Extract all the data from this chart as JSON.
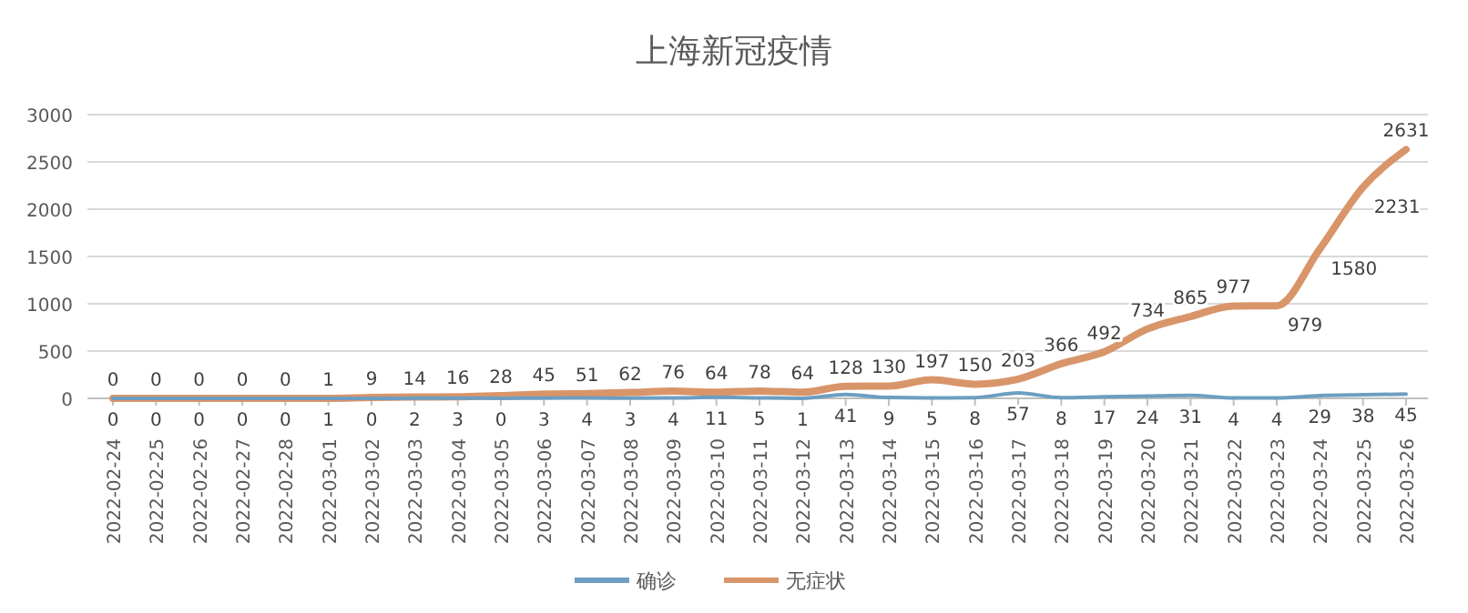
{
  "chart_data": {
    "type": "line",
    "title": "上海新冠疫情",
    "categories": [
      "2022-02-24",
      "2022-02-25",
      "2022-02-26",
      "2022-02-27",
      "2022-02-28",
      "2022-03-01",
      "2022-03-02",
      "2022-03-03",
      "2022-03-04",
      "2022-03-05",
      "2022-03-06",
      "2022-03-07",
      "2022-03-08",
      "2022-03-09",
      "2022-03-10",
      "2022-03-11",
      "2022-03-12",
      "2022-03-13",
      "2022-03-14",
      "2022-03-15",
      "2022-03-16",
      "2022-03-17",
      "2022-03-18",
      "2022-03-19",
      "2022-03-20",
      "2022-03-21",
      "2022-03-22",
      "2022-03-23",
      "2022-03-24",
      "2022-03-25",
      "2022-03-26"
    ],
    "series": [
      {
        "name": "确诊",
        "color": "#6d9ec2",
        "values": [
          0,
          0,
          0,
          0,
          0,
          1,
          0,
          2,
          3,
          0,
          3,
          4,
          3,
          4,
          11,
          5,
          1,
          41,
          9,
          5,
          8,
          57,
          8,
          17,
          24,
          31,
          4,
          4,
          29,
          38,
          45
        ]
      },
      {
        "name": "无症状",
        "color": "#d9956a",
        "values": [
          0,
          0,
          0,
          0,
          0,
          1,
          9,
          14,
          16,
          28,
          45,
          51,
          62,
          76,
          64,
          78,
          64,
          128,
          130,
          197,
          150,
          203,
          366,
          492,
          734,
          865,
          977,
          979,
          1580,
          2231,
          2631
        ]
      }
    ],
    "ylim": [
      0,
      3000
    ],
    "yticks": [
      0,
      500,
      1000,
      1500,
      2000,
      2500,
      3000
    ],
    "grid": "y",
    "legend": "bottom",
    "data_labels": true,
    "marker": "none",
    "line_style": "solid"
  }
}
